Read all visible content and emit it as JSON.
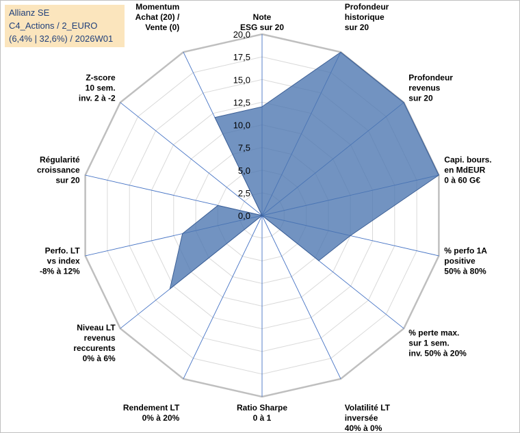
{
  "chart_data": {
    "type": "radar",
    "title_lines": [
      "Allianz SE",
      "C4_Actions / 2_EURO",
      "(6,4% | 32,6%) / 2026W01"
    ],
    "axes": [
      {
        "label": [
          "Note",
          "ESG sur 20"
        ],
        "value": 12
      },
      {
        "label": [
          "Profondeur",
          "historique",
          "sur 20"
        ],
        "value": 20
      },
      {
        "label": [
          "Profondeur",
          "revenus",
          "sur 20"
        ],
        "value": 20
      },
      {
        "label": [
          "Capi. bours.",
          "en MdEUR",
          "0 à 60 G€"
        ],
        "value": 20
      },
      {
        "label": [
          "% perfo 1A",
          "positive",
          "50% à 80%"
        ],
        "value": 10
      },
      {
        "label": [
          "% perte max.",
          "sur 1 sem.",
          "inv. 50% à 20%"
        ],
        "value": 8
      },
      {
        "label": [
          "Volatilité LT",
          "inversée",
          "40% à 0%"
        ],
        "value": 0
      },
      {
        "label": [
          "Ratio Sharpe",
          "0 à 1"
        ],
        "value": 0
      },
      {
        "label": [
          "Rendement LT",
          "0% à 20%"
        ],
        "value": 0
      },
      {
        "label": [
          "Niveau LT",
          "revenus",
          "reccurents",
          "0% à 6%"
        ],
        "value": 13
      },
      {
        "label": [
          "Perfo. LT",
          "vs index",
          "-8% à 12%"
        ],
        "value": 9
      },
      {
        "label": [
          "Régularité",
          "croissance",
          "sur 20"
        ],
        "value": 5
      },
      {
        "label": [
          "Z-score",
          "10 sem.",
          "inv. 2 à -2"
        ],
        "value": 0
      },
      {
        "label": [
          "Momentum",
          "Achat (20) /",
          "Vente (0)"
        ],
        "value": 12
      }
    ],
    "tick_labels": [
      "0,0",
      "2,5",
      "5,0",
      "7,5",
      "10,0",
      "12,5",
      "15,0",
      "17,5",
      "20,0"
    ],
    "ylim": [
      0,
      20
    ],
    "fill_color": "#4a74b0",
    "fill_opacity": 0.78,
    "outline_color": "#3c5f95",
    "grid_color": "#d9d9d9",
    "outer_ring_color": "#bfbfbf",
    "spoke_color": "#4472c4"
  }
}
